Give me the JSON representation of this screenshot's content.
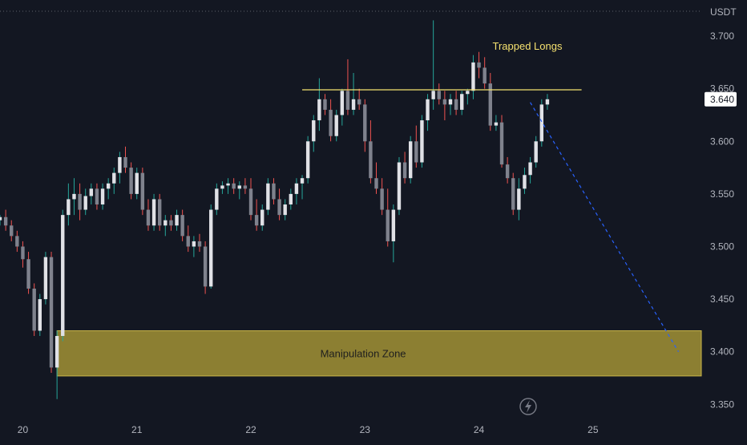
{
  "chart_data": {
    "type": "candlestick",
    "quote_currency": "USDT",
    "y_axis": {
      "ticks": [
        "3.700",
        "3.650",
        "3.600",
        "3.550",
        "3.500",
        "3.450",
        "3.400",
        "3.350"
      ],
      "ylim": [
        3.335,
        3.713
      ]
    },
    "x_axis": {
      "ticks": [
        "20",
        "21",
        "22",
        "23",
        "24",
        "25"
      ],
      "xlim": [
        19.8,
        25.95
      ]
    },
    "current_price": "3.640",
    "colors": {
      "background": "#131722",
      "up": "#e0e1e6",
      "down": "#7f828d",
      "wick_up": "#26a69a",
      "wick_down": "#ef5350",
      "resistance": "#f5e16f",
      "zone_fill": "#8c7f32",
      "projection": "#2962ff"
    },
    "annotations": {
      "trapped_longs": "Trapped Longs",
      "manipulation_zone": "Manipulation Zone"
    },
    "resistance_line": {
      "price": 3.649,
      "x_start": 22.45,
      "x_end": 24.9
    },
    "zone": {
      "top": 3.42,
      "bottom": 3.377,
      "x_start": 20.3,
      "x_end": 25.95
    },
    "projection_line": {
      "x1": 24.45,
      "y1": 3.637,
      "x2": 25.75,
      "y2": 3.4
    },
    "candles": [
      [
        19.8,
        3.525,
        3.53,
        3.52,
        3.528
      ],
      [
        19.85,
        3.528,
        3.535,
        3.515,
        3.52
      ],
      [
        19.9,
        3.52,
        3.525,
        3.505,
        3.51
      ],
      [
        19.95,
        3.51,
        3.515,
        3.495,
        3.5
      ],
      [
        20.0,
        3.5,
        3.505,
        3.48,
        3.488
      ],
      [
        20.05,
        3.488,
        3.495,
        3.455,
        3.46
      ],
      [
        20.1,
        3.46,
        3.465,
        3.415,
        3.42
      ],
      [
        20.15,
        3.42,
        3.455,
        3.415,
        3.45
      ],
      [
        20.2,
        3.45,
        3.495,
        3.445,
        3.49
      ],
      [
        20.25,
        3.49,
        3.495,
        3.38,
        3.385
      ],
      [
        20.3,
        3.385,
        3.42,
        3.355,
        3.415
      ],
      [
        20.35,
        3.415,
        3.535,
        3.41,
        3.53
      ],
      [
        20.4,
        3.53,
        3.56,
        3.52,
        3.545
      ],
      [
        20.45,
        3.545,
        3.565,
        3.53,
        3.55
      ],
      [
        20.5,
        3.55,
        3.56,
        3.525,
        3.535
      ],
      [
        20.55,
        3.535,
        3.555,
        3.53,
        3.548
      ],
      [
        20.6,
        3.548,
        3.56,
        3.54,
        3.555
      ],
      [
        20.65,
        3.555,
        3.56,
        3.535,
        3.54
      ],
      [
        20.7,
        3.54,
        3.56,
        3.535,
        3.555
      ],
      [
        20.75,
        3.555,
        3.565,
        3.545,
        3.56
      ],
      [
        20.8,
        3.56,
        3.575,
        3.55,
        3.57
      ],
      [
        20.85,
        3.57,
        3.59,
        3.56,
        3.585
      ],
      [
        20.9,
        3.585,
        3.595,
        3.57,
        3.575
      ],
      [
        20.95,
        3.575,
        3.58,
        3.545,
        3.55
      ],
      [
        21.0,
        3.55,
        3.575,
        3.545,
        3.57
      ],
      [
        21.05,
        3.57,
        3.575,
        3.53,
        3.535
      ],
      [
        21.1,
        3.535,
        3.545,
        3.515,
        3.52
      ],
      [
        21.15,
        3.52,
        3.55,
        3.515,
        3.545
      ],
      [
        21.2,
        3.545,
        3.55,
        3.515,
        3.52
      ],
      [
        21.25,
        3.52,
        3.53,
        3.51,
        3.525
      ],
      [
        21.3,
        3.525,
        3.53,
        3.515,
        3.52
      ],
      [
        21.35,
        3.52,
        3.535,
        3.515,
        3.53
      ],
      [
        21.4,
        3.53,
        3.535,
        3.505,
        3.51
      ],
      [
        21.45,
        3.51,
        3.52,
        3.495,
        3.5
      ],
      [
        21.5,
        3.5,
        3.51,
        3.49,
        3.505
      ],
      [
        21.55,
        3.505,
        3.512,
        3.495,
        3.5
      ],
      [
        21.6,
        3.5,
        3.505,
        3.455,
        3.462
      ],
      [
        21.65,
        3.462,
        3.54,
        3.46,
        3.535
      ],
      [
        21.7,
        3.535,
        3.56,
        3.53,
        3.555
      ],
      [
        21.75,
        3.555,
        3.562,
        3.55,
        3.558
      ],
      [
        21.8,
        3.558,
        3.565,
        3.55,
        3.56
      ],
      [
        21.85,
        3.56,
        3.565,
        3.55,
        3.555
      ],
      [
        21.9,
        3.555,
        3.562,
        3.545,
        3.558
      ],
      [
        21.95,
        3.558,
        3.565,
        3.55,
        3.555
      ],
      [
        22.0,
        3.555,
        3.565,
        3.525,
        3.53
      ],
      [
        22.05,
        3.53,
        3.545,
        3.515,
        3.52
      ],
      [
        22.1,
        3.52,
        3.54,
        3.515,
        3.535
      ],
      [
        22.15,
        3.535,
        3.565,
        3.53,
        3.56
      ],
      [
        22.2,
        3.56,
        3.565,
        3.54,
        3.545
      ],
      [
        22.25,
        3.545,
        3.555,
        3.525,
        3.53
      ],
      [
        22.3,
        3.53,
        3.545,
        3.525,
        3.54
      ],
      [
        22.35,
        3.54,
        3.555,
        3.535,
        3.55
      ],
      [
        22.4,
        3.55,
        3.565,
        3.54,
        3.56
      ],
      [
        22.45,
        3.56,
        3.568,
        3.545,
        3.565
      ],
      [
        22.5,
        3.565,
        3.605,
        3.56,
        3.6
      ],
      [
        22.55,
        3.6,
        3.625,
        3.59,
        3.62
      ],
      [
        22.6,
        3.62,
        3.66,
        3.61,
        3.64
      ],
      [
        22.65,
        3.64,
        3.645,
        3.625,
        3.63
      ],
      [
        22.7,
        3.63,
        3.64,
        3.6,
        3.605
      ],
      [
        22.75,
        3.605,
        3.63,
        3.6,
        3.625
      ],
      [
        22.8,
        3.625,
        3.65,
        3.615,
        3.648
      ],
      [
        22.85,
        3.648,
        3.678,
        3.625,
        3.63
      ],
      [
        22.9,
        3.63,
        3.665,
        3.625,
        3.64
      ],
      [
        22.95,
        3.64,
        3.65,
        3.63,
        3.635
      ],
      [
        23.0,
        3.635,
        3.64,
        3.59,
        3.6
      ],
      [
        23.05,
        3.6,
        3.62,
        3.56,
        3.565
      ],
      [
        23.1,
        3.565,
        3.58,
        3.55,
        3.555
      ],
      [
        23.15,
        3.555,
        3.565,
        3.53,
        3.535
      ],
      [
        23.2,
        3.535,
        3.555,
        3.5,
        3.505
      ],
      [
        23.25,
        3.505,
        3.54,
        3.485,
        3.535
      ],
      [
        23.3,
        3.535,
        3.585,
        3.53,
        3.58
      ],
      [
        23.35,
        3.58,
        3.59,
        3.56,
        3.565
      ],
      [
        23.4,
        3.565,
        3.605,
        3.56,
        3.6
      ],
      [
        23.45,
        3.6,
        3.615,
        3.575,
        3.58
      ],
      [
        23.5,
        3.58,
        3.625,
        3.575,
        3.62
      ],
      [
        23.55,
        3.62,
        3.645,
        3.61,
        3.64
      ],
      [
        23.6,
        3.64,
        3.715,
        3.63,
        3.648
      ],
      [
        23.65,
        3.648,
        3.655,
        3.635,
        3.64
      ],
      [
        23.7,
        3.64,
        3.648,
        3.62,
        3.635
      ],
      [
        23.75,
        3.635,
        3.645,
        3.625,
        3.64
      ],
      [
        23.8,
        3.64,
        3.648,
        3.625,
        3.63
      ],
      [
        23.85,
        3.63,
        3.648,
        3.625,
        3.645
      ],
      [
        23.9,
        3.645,
        3.65,
        3.635,
        3.648
      ],
      [
        23.95,
        3.648,
        3.682,
        3.64,
        3.675
      ],
      [
        24.0,
        3.675,
        3.685,
        3.66,
        3.67
      ],
      [
        24.05,
        3.67,
        3.68,
        3.65,
        3.655
      ],
      [
        24.1,
        3.655,
        3.665,
        3.61,
        3.615
      ],
      [
        24.15,
        3.615,
        3.625,
        3.61,
        3.618
      ],
      [
        24.2,
        3.618,
        3.625,
        3.575,
        3.578
      ],
      [
        24.25,
        3.578,
        3.585,
        3.56,
        3.565
      ],
      [
        24.3,
        3.565,
        3.57,
        3.53,
        3.535
      ],
      [
        24.35,
        3.535,
        3.565,
        3.525,
        3.555
      ],
      [
        24.4,
        3.555,
        3.575,
        3.55,
        3.568
      ],
      [
        24.45,
        3.568,
        3.585,
        3.56,
        3.58
      ],
      [
        24.5,
        3.58,
        3.605,
        3.575,
        3.6
      ],
      [
        24.55,
        3.6,
        3.64,
        3.595,
        3.635
      ],
      [
        24.6,
        3.635,
        3.645,
        3.63,
        3.64
      ]
    ]
  }
}
